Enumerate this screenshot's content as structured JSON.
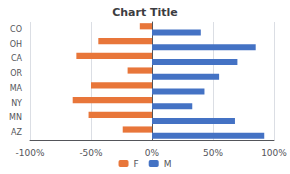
{
  "chart_data": {
    "type": "bar",
    "orientation": "horizontal",
    "title": "Chart Title",
    "categories": [
      "CO",
      "OH",
      "CA",
      "OR",
      "MA",
      "NY",
      "MN",
      "AZ"
    ],
    "series": [
      {
        "name": "F",
        "color": "#E8763A",
        "values": [
          -10,
          -44,
          -62,
          -20,
          -50,
          -65,
          -52,
          -24
        ]
      },
      {
        "name": "M",
        "color": "#4472C4",
        "values": [
          40,
          85,
          70,
          55,
          43,
          33,
          68,
          92
        ]
      }
    ],
    "xlim": [
      -100,
      100
    ],
    "xticks": [
      {
        "value": -100,
        "label": "-100%"
      },
      {
        "value": -50,
        "label": "-50%"
      },
      {
        "value": 0,
        "label": "0%"
      },
      {
        "value": 50,
        "label": "50%"
      },
      {
        "value": 100,
        "label": "100%"
      }
    ],
    "grid": true,
    "legend": "bottom"
  }
}
